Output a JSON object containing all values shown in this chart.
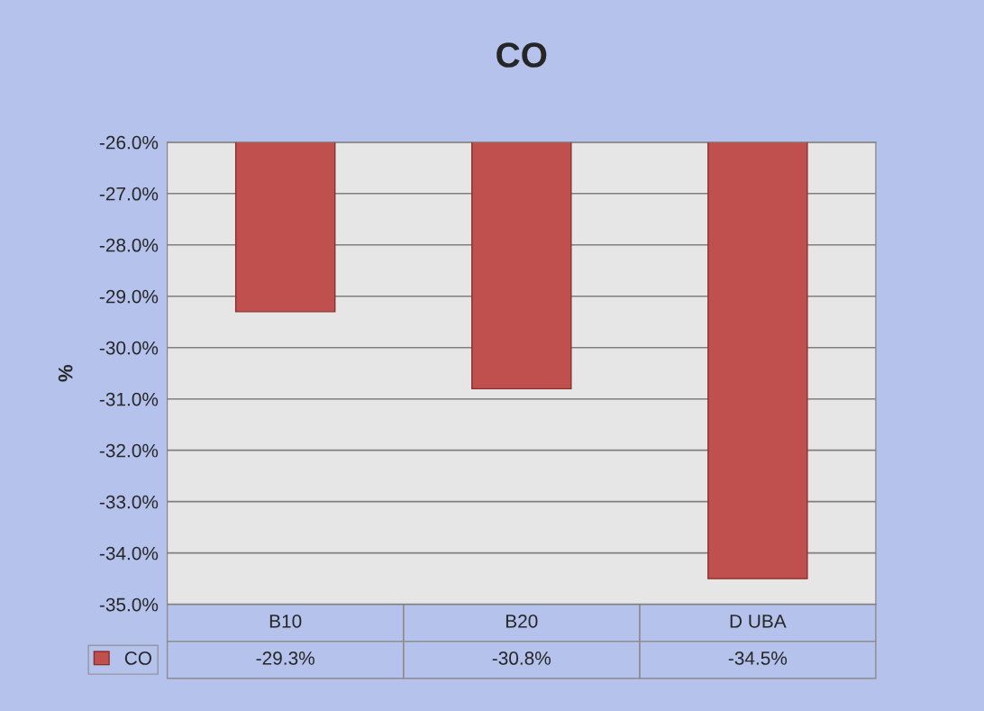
{
  "chart_data": {
    "type": "bar",
    "title": "CO",
    "ylabel": "%",
    "categories": [
      "B10",
      "B20",
      "D UBA"
    ],
    "series": [
      {
        "name": "CO",
        "color": "#c0504d",
        "values": [
          -29.3,
          -30.8,
          -34.5
        ],
        "value_labels": [
          "-29.3%",
          "-30.8%",
          "-34.5%"
        ]
      }
    ],
    "ylim": [
      -35,
      -26
    ],
    "yticks": [
      {
        "value": -26,
        "label": "-26.0%"
      },
      {
        "value": -27,
        "label": "-27.0%"
      },
      {
        "value": -28,
        "label": "-28.0%"
      },
      {
        "value": -29,
        "label": "-29.0%"
      },
      {
        "value": -30,
        "label": "-30.0%"
      },
      {
        "value": -31,
        "label": "-31.0%"
      },
      {
        "value": -32,
        "label": "-32.0%"
      },
      {
        "value": -33,
        "label": "-33.0%"
      },
      {
        "value": -34,
        "label": "-34.0%"
      },
      {
        "value": -35,
        "label": "-35.0%"
      }
    ],
    "grid": "y",
    "legend": "bottom left"
  }
}
